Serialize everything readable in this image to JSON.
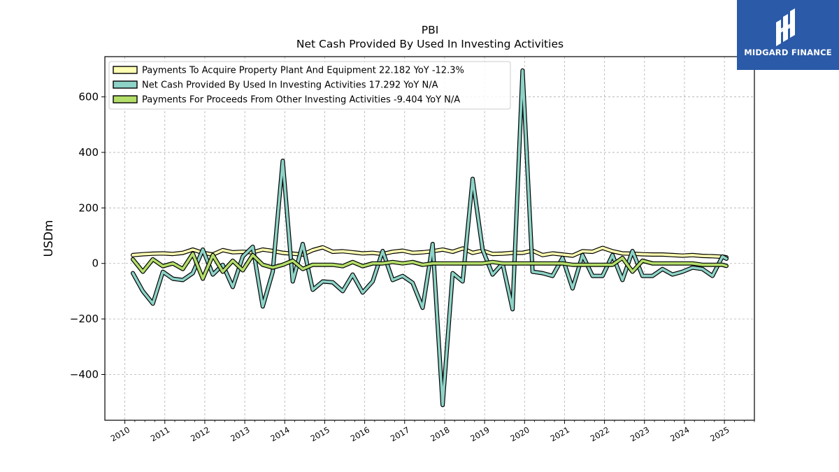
{
  "logo": {
    "name": "MIDGARD FINANCE",
    "bg_color": "#2a5aa8"
  },
  "chart_data": {
    "type": "line",
    "title": "PBI",
    "subtitle": "Net Cash Provided By Used In Investing Activities",
    "xlabel": "",
    "ylabel": "USDm",
    "ylim": [
      -565,
      745
    ],
    "xlim": [
      2009.5,
      2025.75
    ],
    "xticks": [
      "2010",
      "2011",
      "2012",
      "2013",
      "2014",
      "2015",
      "2016",
      "2017",
      "2018",
      "2019",
      "2020",
      "2021",
      "2022",
      "2023",
      "2024",
      "2025"
    ],
    "yticks": [
      -400,
      -200,
      0,
      200,
      400,
      600
    ],
    "ytick_labels": [
      "−400",
      "−200",
      "0",
      "200",
      "400",
      "600"
    ],
    "grid": true,
    "legend_position": "top-left",
    "x": [
      2010.2,
      2010.45,
      2010.7,
      2010.95,
      2011.2,
      2011.45,
      2011.7,
      2011.95,
      2012.2,
      2012.45,
      2012.7,
      2012.95,
      2013.2,
      2013.45,
      2013.7,
      2013.95,
      2014.2,
      2014.45,
      2014.7,
      2014.95,
      2015.2,
      2015.45,
      2015.7,
      2015.95,
      2016.2,
      2016.45,
      2016.7,
      2016.95,
      2017.2,
      2017.45,
      2017.7,
      2017.95,
      2018.2,
      2018.45,
      2018.7,
      2018.95,
      2019.2,
      2019.45,
      2019.7,
      2019.95,
      2020.2,
      2020.45,
      2020.7,
      2020.95,
      2021.2,
      2021.45,
      2021.7,
      2021.95,
      2022.2,
      2022.45,
      2022.7,
      2022.95,
      2023.2,
      2023.45,
      2023.7,
      2023.95,
      2024.2,
      2024.45,
      2024.7,
      2024.95,
      2025.05
    ],
    "series": [
      {
        "name": "Payments To Acquire Property Plant And Equipment",
        "legend_label": "Payments To Acquire Property Plant And Equipment  22.182 YoY -12.3%",
        "color": "#ffffb3",
        "values": [
          30,
          33,
          35,
          36,
          34,
          38,
          50,
          38,
          32,
          48,
          40,
          42,
          40,
          50,
          45,
          38,
          35,
          32,
          48,
          58,
          42,
          44,
          40,
          36,
          38,
          34,
          42,
          46,
          38,
          40,
          44,
          50,
          42,
          54,
          38,
          46,
          34,
          35,
          38,
          38,
          46,
          30,
          36,
          32,
          28,
          44,
          42,
          56,
          44,
          36,
          35,
          33,
          32,
          32,
          30,
          28,
          30,
          27,
          26,
          24,
          22
        ]
      },
      {
        "name": "Net Cash Provided By Used In Investing Activities",
        "legend_label": "Net Cash Provided By Used In Investing Activities  17.292 YoY N/A",
        "color": "#8dd3c7",
        "values": [
          -35,
          -100,
          -145,
          -30,
          -55,
          -60,
          -35,
          50,
          -40,
          -5,
          -85,
          25,
          60,
          -155,
          -30,
          370,
          -65,
          70,
          -95,
          -65,
          -68,
          -100,
          -40,
          -105,
          -65,
          45,
          -60,
          -45,
          -70,
          -160,
          70,
          -510,
          -35,
          -65,
          305,
          50,
          -40,
          0,
          -165,
          695,
          -30,
          -35,
          -45,
          20,
          -90,
          30,
          -45,
          -45,
          30,
          -60,
          45,
          -45,
          -45,
          -20,
          -40,
          -30,
          -15,
          -20,
          -45,
          25,
          17
        ]
      },
      {
        "name": "Payments For Proceeds From Other Investing Activities",
        "legend_label": "Payments For Proceeds From Other Investing Activities  -9.404 YoY N/A",
        "color": "#b3de69",
        "values": [
          15,
          -30,
          15,
          -10,
          0,
          -20,
          35,
          -55,
          30,
          -30,
          10,
          -25,
          30,
          -5,
          -15,
          -5,
          10,
          -20,
          -5,
          -5,
          -5,
          -10,
          5,
          -10,
          0,
          0,
          5,
          0,
          5,
          -5,
          0,
          0,
          0,
          0,
          0,
          0,
          5,
          0,
          0,
          0,
          0,
          0,
          0,
          0,
          -5,
          -5,
          -5,
          -5,
          -5,
          20,
          -30,
          10,
          0,
          0,
          0,
          0,
          0,
          -5,
          -5,
          -5,
          -9
        ]
      }
    ]
  }
}
